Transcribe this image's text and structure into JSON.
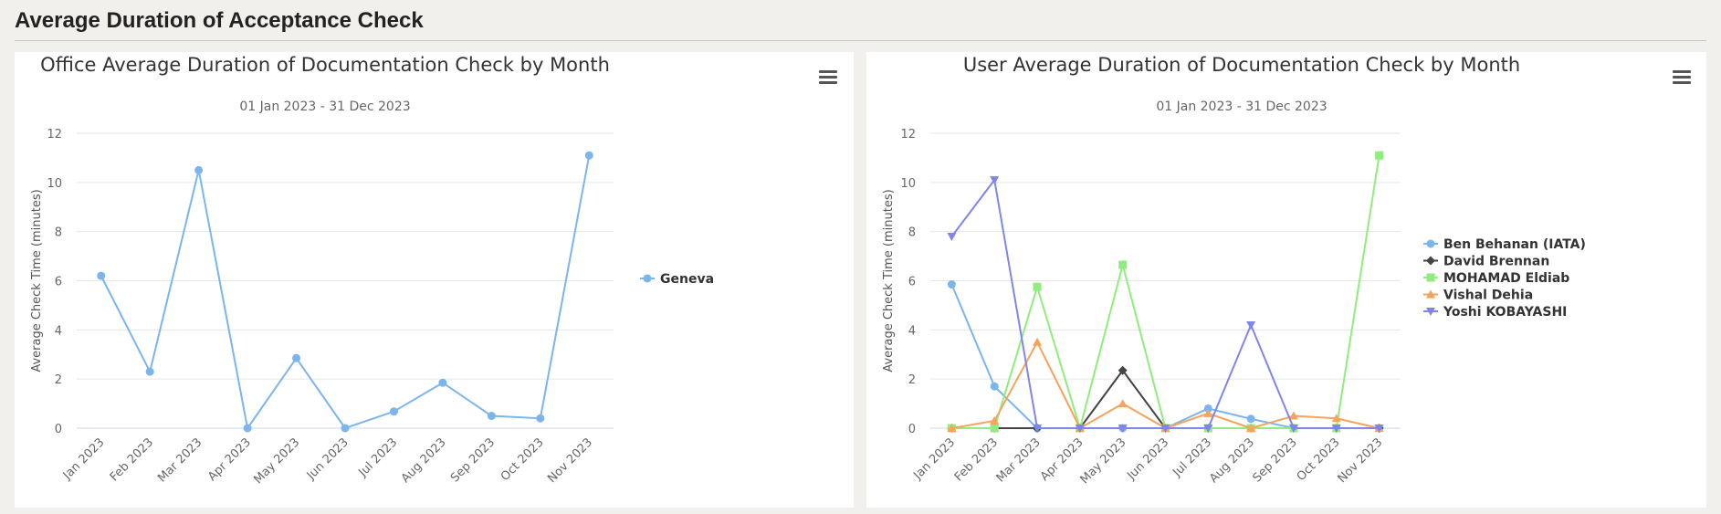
{
  "page": {
    "title": "Average Duration of Acceptance Check"
  },
  "chart_data": [
    {
      "type": "line",
      "title": "Office Average Duration of Documentation Check by Month",
      "subtitle": "01 Jan 2023 - 31 Dec 2023",
      "ylabel": "Average Check Time (minutes)",
      "xlabel": "",
      "categories": [
        "Jan 2023",
        "Feb 2023",
        "Mar 2023",
        "Apr 2023",
        "May 2023",
        "Jun 2023",
        "Jul 2023",
        "Aug 2023",
        "Sep 2023",
        "Oct 2023",
        "Nov 2023"
      ],
      "ylim": [
        0,
        12
      ],
      "yticks": [
        0,
        2,
        4,
        6,
        8,
        10,
        12
      ],
      "grid": true,
      "legend_position": "right",
      "series": [
        {
          "name": "Geneva",
          "color": "#7cb5ec",
          "marker": "circle",
          "values": [
            6.2,
            2.3,
            10.5,
            0,
            2.85,
            0,
            0.68,
            1.85,
            0.5,
            0.4,
            11.1
          ]
        }
      ]
    },
    {
      "type": "line",
      "title": "User Average Duration of Documentation Check by Month",
      "subtitle": "01 Jan 2023 - 31 Dec 2023",
      "ylabel": "Average Check Time (minutes)",
      "xlabel": "",
      "categories": [
        "Jan 2023",
        "Feb 2023",
        "Mar 2023",
        "Apr 2023",
        "May 2023",
        "Jun 2023",
        "Jul 2023",
        "Aug 2023",
        "Sep 2023",
        "Oct 2023",
        "Nov 2023"
      ],
      "ylim": [
        0,
        12
      ],
      "yticks": [
        0,
        2,
        4,
        6,
        8,
        10,
        12
      ],
      "grid": true,
      "legend_position": "right",
      "series": [
        {
          "name": "Ben Behanan (IATA)",
          "color": "#7cb5ec",
          "marker": "circle",
          "values": [
            5.85,
            1.7,
            0,
            0,
            0,
            0,
            0.8,
            0.38,
            0,
            0,
            0
          ]
        },
        {
          "name": "David Brennan",
          "color": "#434348",
          "marker": "diamond",
          "values": [
            0,
            0,
            0,
            0,
            2.35,
            0,
            0,
            0,
            0,
            0,
            0
          ]
        },
        {
          "name": "MOHAMAD Eldiab",
          "color": "#90ed7d",
          "marker": "square",
          "values": [
            0,
            0,
            5.75,
            0,
            6.65,
            0,
            0,
            0,
            0,
            0,
            11.1
          ]
        },
        {
          "name": "Vishal Dehia",
          "color": "#f7a35c",
          "marker": "triangle",
          "values": [
            0,
            0.3,
            3.5,
            0,
            1.0,
            0,
            0.6,
            0,
            0.5,
            0.4,
            0
          ]
        },
        {
          "name": "Yoshi KOBAYASHI",
          "color": "#8085e9",
          "marker": "triangle-down",
          "values": [
            7.8,
            10.1,
            0,
            0,
            0,
            0,
            0,
            4.2,
            0,
            0,
            0
          ]
        }
      ]
    }
  ]
}
